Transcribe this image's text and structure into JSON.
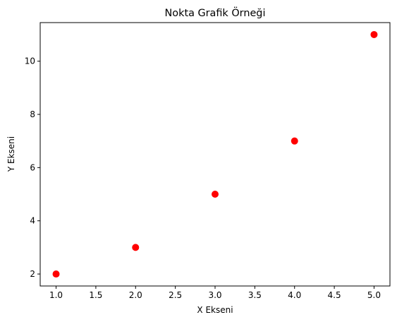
{
  "chart_data": {
    "type": "scatter",
    "title": "Nokta Grafik Örneği",
    "xlabel": "X Ekseni",
    "ylabel": "Y Ekseni",
    "xlim": [
      0.8,
      5.2
    ],
    "ylim": [
      1.55,
      11.45
    ],
    "xticks": [
      1.0,
      1.5,
      2.0,
      2.5,
      3.0,
      3.5,
      4.0,
      4.5,
      5.0
    ],
    "xtick_labels": [
      "1.0",
      "1.5",
      "2.0",
      "2.5",
      "3.0",
      "3.5",
      "4.0",
      "4.5",
      "5.0"
    ],
    "yticks": [
      2,
      4,
      6,
      8,
      10
    ],
    "ytick_labels": [
      "2",
      "4",
      "6",
      "8",
      "10"
    ],
    "grid": false,
    "series": [
      {
        "x": [
          1,
          2,
          3,
          4,
          5
        ],
        "y": [
          2,
          3,
          5,
          7,
          11
        ],
        "color": "#ff0000",
        "marker": "circle"
      }
    ]
  }
}
